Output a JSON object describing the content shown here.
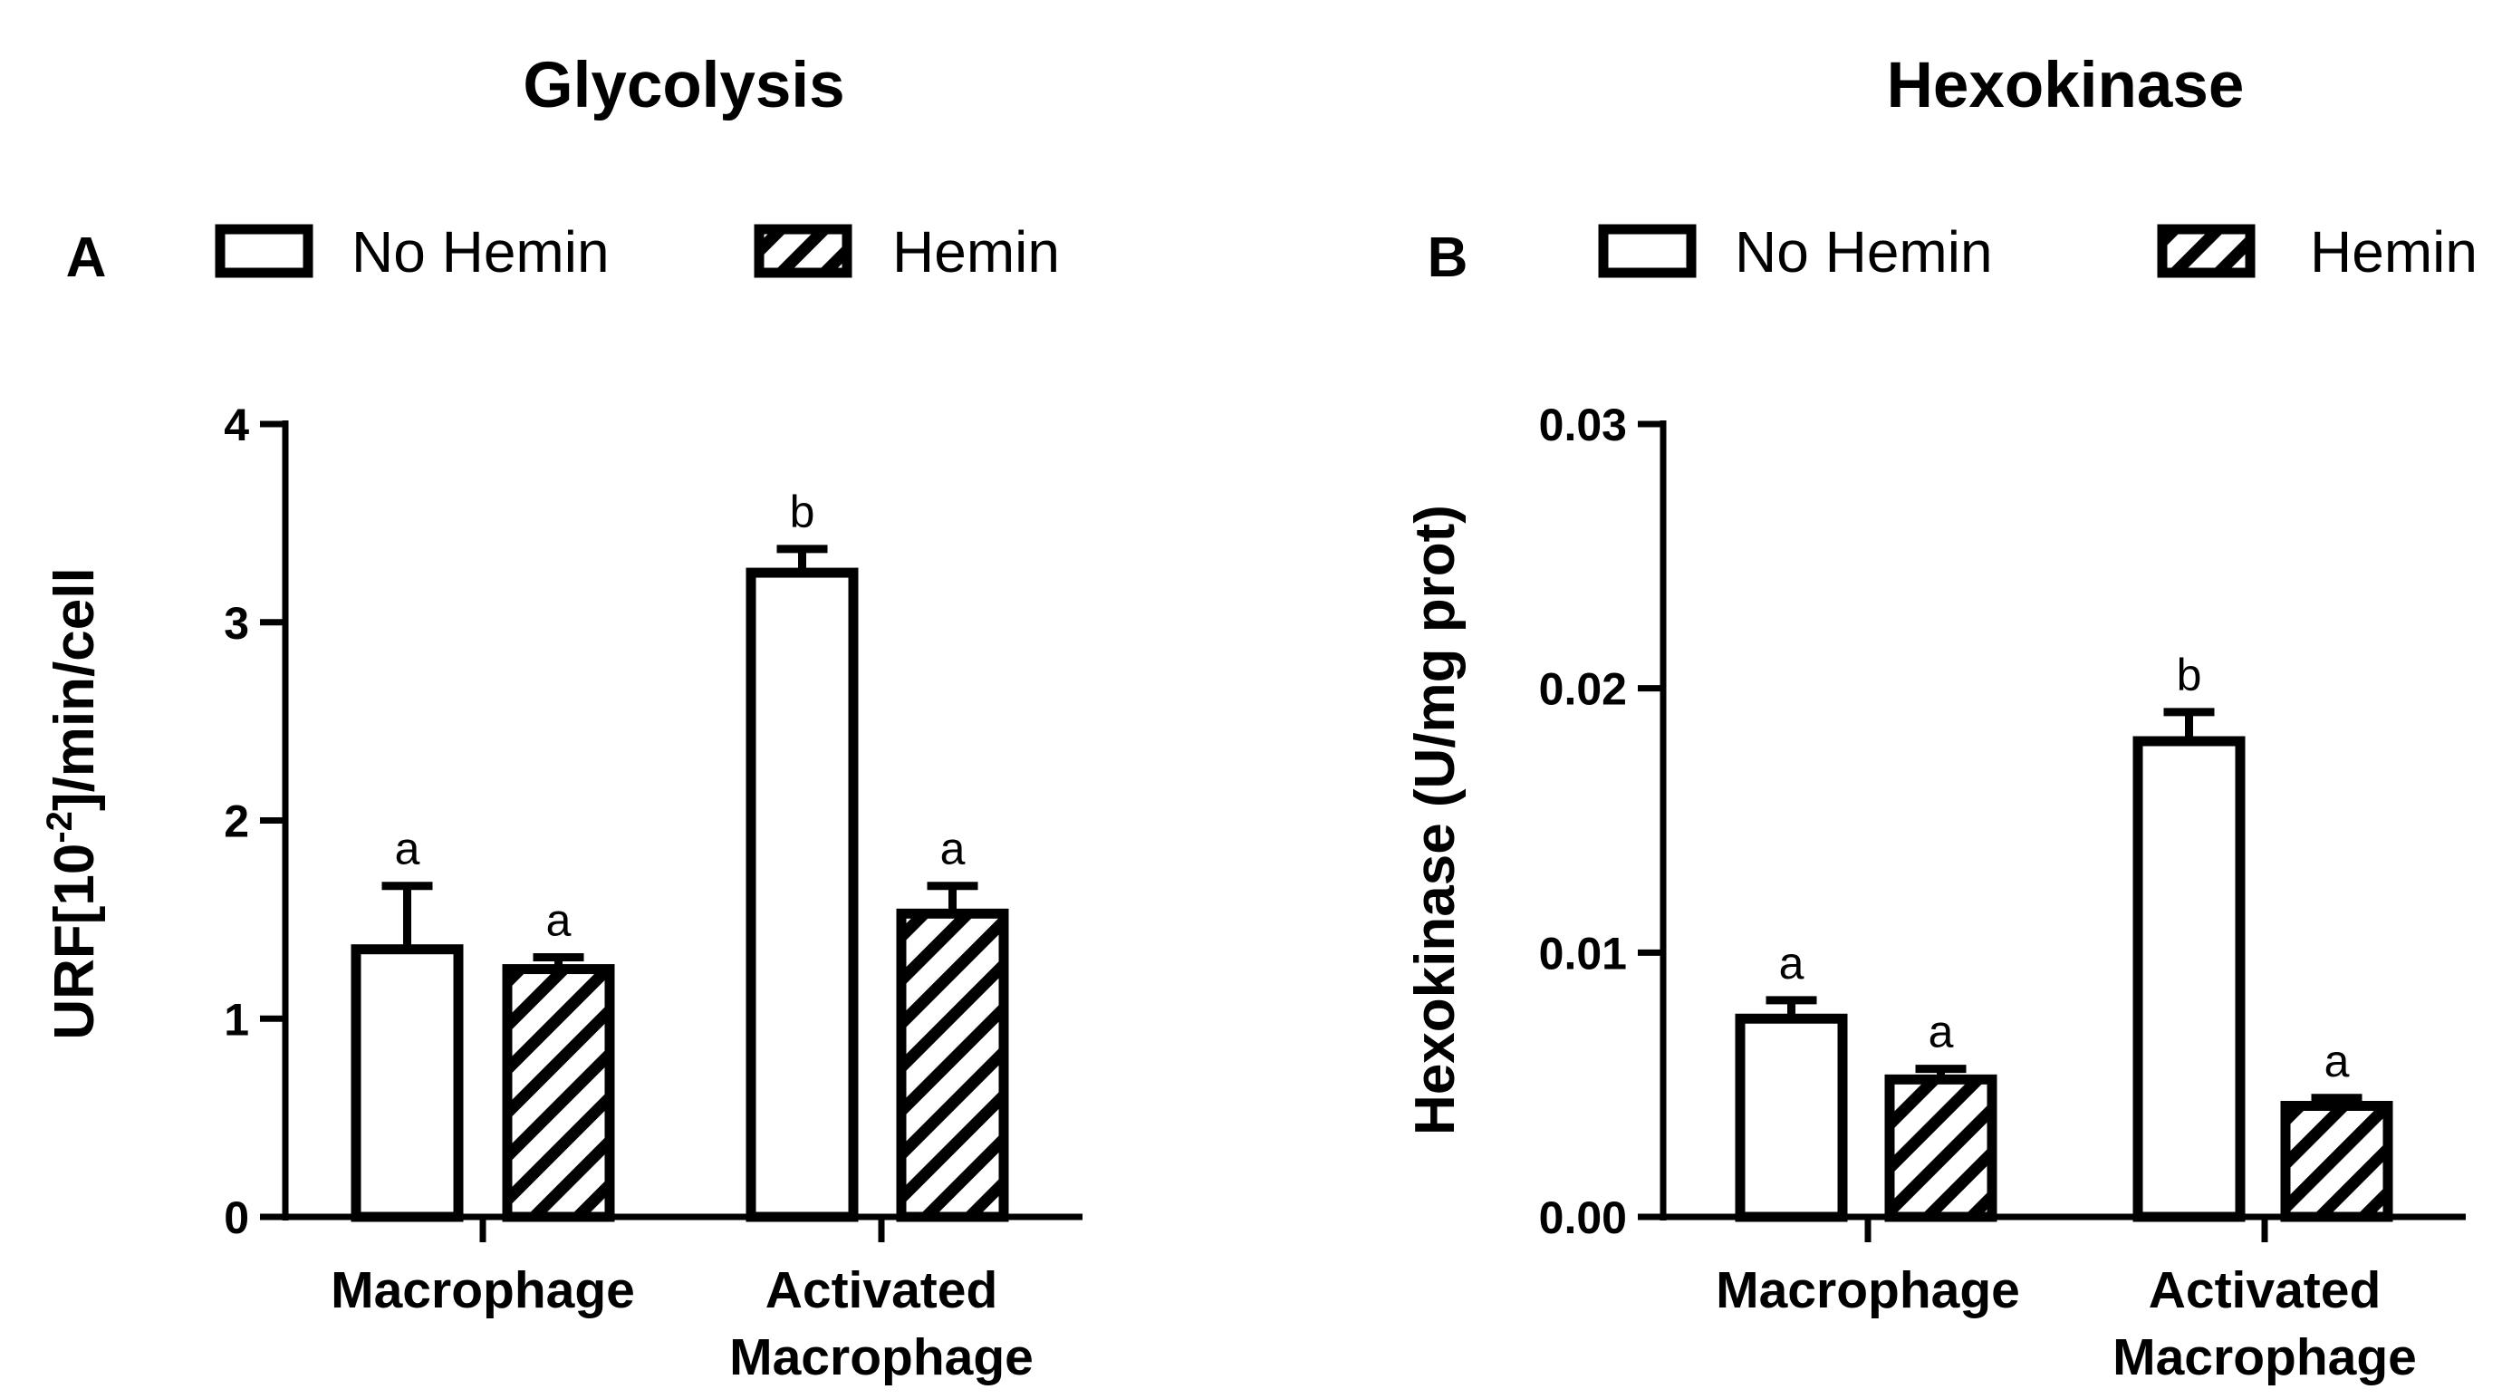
{
  "colors": {
    "stroke": "#000000",
    "background": "#ffffff"
  },
  "chart_data": [
    {
      "type": "bar",
      "panel": "A",
      "title": "Glycolysis",
      "ylabel": "URF[10-2]/min/cell",
      "ylabel_parts": {
        "pre": "URF[10",
        "sup": "-2",
        "post": "]/min/cell"
      },
      "ylim": [
        0,
        4
      ],
      "yticks": [
        0,
        1,
        2,
        3,
        4
      ],
      "ytick_labels": [
        "0",
        "1",
        "2",
        "3",
        "4"
      ],
      "categories": [
        {
          "lines": [
            "Macrophage"
          ]
        },
        {
          "lines": [
            "Activated",
            "Macrophage"
          ]
        }
      ],
      "legend_position": "top",
      "series": [
        {
          "name": "No Hemin",
          "pattern": "none",
          "values": [
            1.35,
            3.25
          ],
          "errors": [
            0.32,
            0.12
          ],
          "labels": [
            "a",
            "b"
          ]
        },
        {
          "name": "Hemin",
          "pattern": "hatch",
          "values": [
            1.25,
            1.53
          ],
          "errors": [
            0.06,
            0.14
          ],
          "labels": [
            "a",
            "a"
          ]
        }
      ]
    },
    {
      "type": "bar",
      "panel": "B",
      "title": "Hexokinase",
      "ylabel": "Hexokinase (U/mg prot)",
      "ylim": [
        0,
        0.03
      ],
      "yticks": [
        0,
        0.01,
        0.02,
        0.03
      ],
      "ytick_labels": [
        "0.00",
        "0.01",
        "0.02",
        "0.03"
      ],
      "categories": [
        {
          "lines": [
            "Macrophage"
          ]
        },
        {
          "lines": [
            "Activated",
            "Macrophage"
          ]
        }
      ],
      "legend_position": "top",
      "series": [
        {
          "name": "No Hemin",
          "pattern": "none",
          "values": [
            0.0075,
            0.018
          ],
          "errors": [
            0.0007,
            0.0011
          ],
          "labels": [
            "a",
            "b"
          ]
        },
        {
          "name": "Hemin",
          "pattern": "hatch",
          "values": [
            0.0052,
            0.0042
          ],
          "errors": [
            0.0004,
            0.0003
          ],
          "labels": [
            "a",
            "a"
          ]
        }
      ]
    }
  ]
}
